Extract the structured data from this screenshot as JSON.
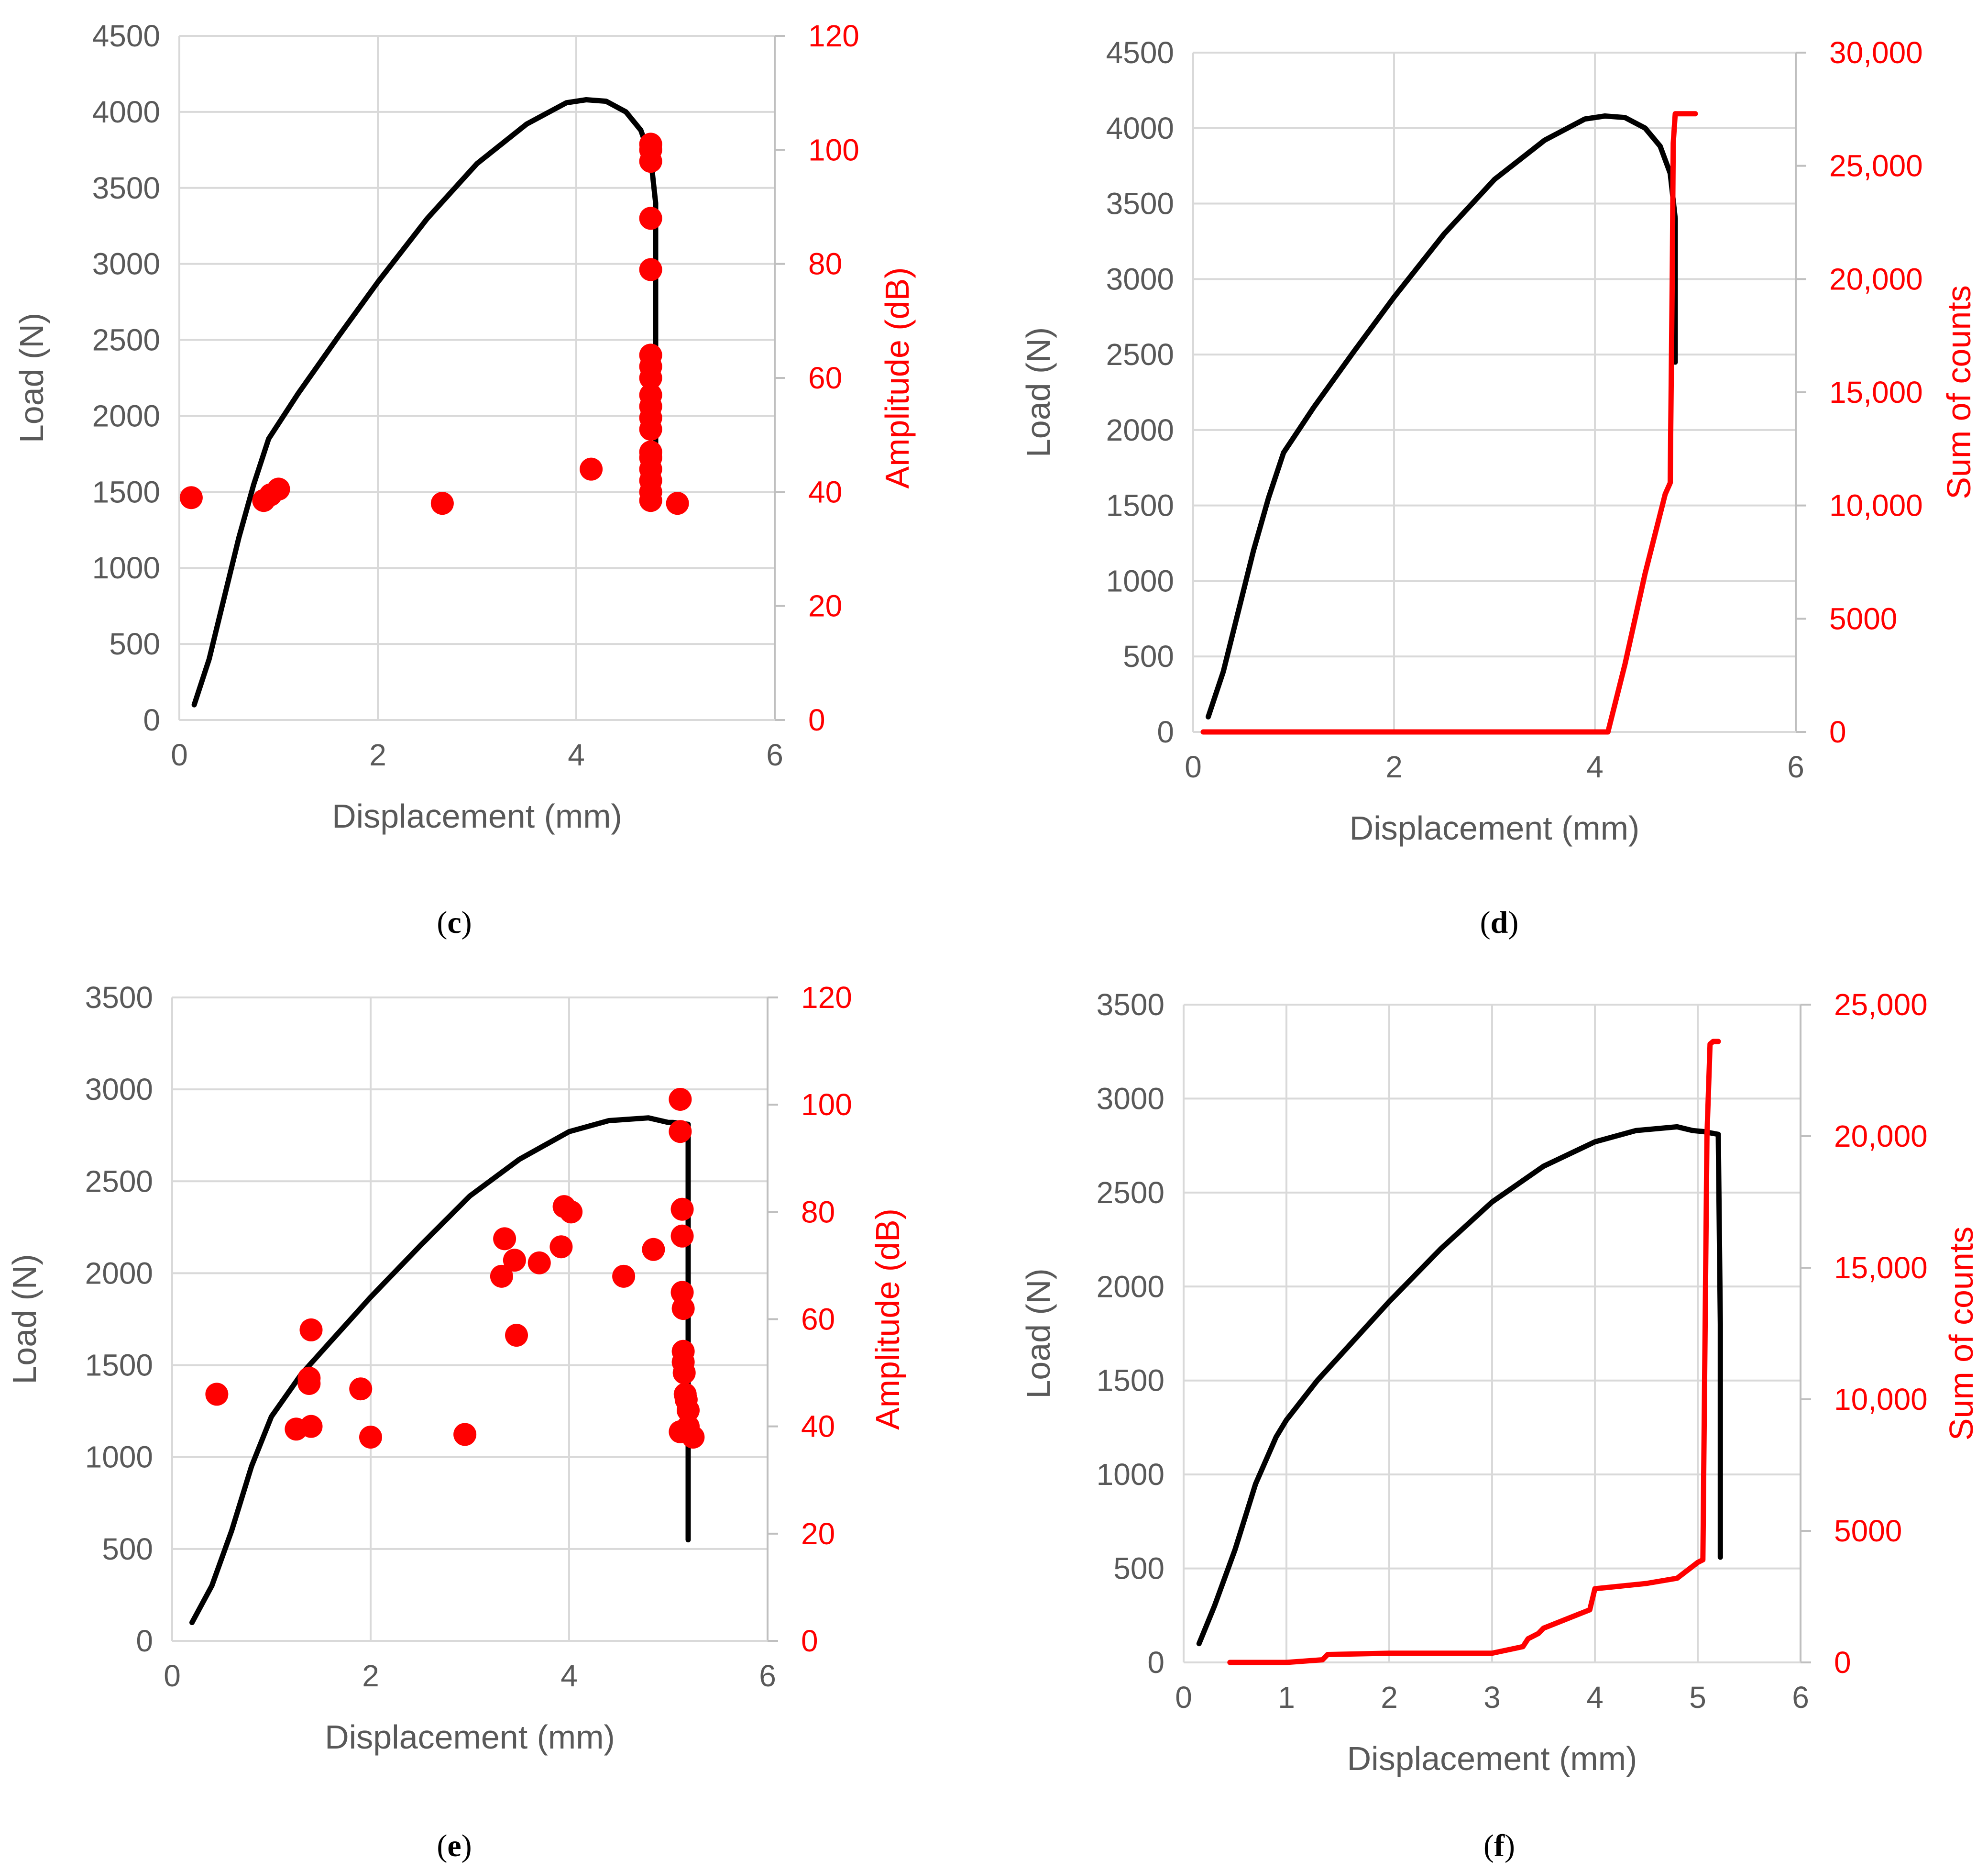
{
  "colors": {
    "load": "#000000",
    "acoustic": "#ff0000",
    "tick": "#595959",
    "grid": "#d9d9d9"
  },
  "chart_data": [
    {
      "panel": "(c)",
      "panel_letter": "c",
      "type": "line+scatter",
      "xlabel": "Displacement (mm)",
      "ylabel": "Load (N)",
      "y2label": "Amplitude (dB)",
      "xlim": [
        0,
        6
      ],
      "xticks": [
        "0",
        "2",
        "4",
        "6"
      ],
      "ylim": [
        0,
        4500
      ],
      "yticks": [
        "0",
        "500",
        "1000",
        "1500",
        "2000",
        "2500",
        "3000",
        "3500",
        "4000",
        "4500"
      ],
      "y2lim": [
        0,
        120
      ],
      "y2ticks": [
        "0",
        "20",
        "40",
        "60",
        "80",
        "100",
        "120"
      ],
      "series": [
        {
          "name": "Load",
          "axis": "left",
          "kind": "line",
          "x": [
            0.15,
            0.3,
            0.45,
            0.6,
            0.75,
            0.9,
            1.2,
            1.6,
            2.0,
            2.5,
            3.0,
            3.5,
            3.9,
            4.1,
            4.3,
            4.5,
            4.65,
            4.75,
            4.8,
            4.8
          ],
          "y": [
            100,
            400,
            800,
            1200,
            1550,
            1850,
            2150,
            2520,
            2880,
            3300,
            3660,
            3920,
            4060,
            4080,
            4070,
            4000,
            3880,
            3700,
            3400,
            1450
          ]
        },
        {
          "name": "Amplitude",
          "axis": "right",
          "kind": "scatter",
          "x": [
            0.12,
            0.85,
            0.92,
            1.0,
            2.65,
            4.15,
            4.75,
            4.75,
            4.75,
            4.75,
            4.75,
            4.75,
            4.75,
            4.75,
            4.75,
            4.75,
            4.75,
            4.75,
            4.75,
            4.75,
            4.75,
            4.75,
            4.75,
            4.75,
            5.02
          ],
          "y": [
            39,
            38.5,
            39.5,
            40.5,
            38,
            44,
            101,
            100,
            98,
            88,
            79,
            64,
            62,
            60,
            57,
            55,
            53,
            51,
            47,
            46,
            44,
            42,
            40,
            38.5,
            38
          ]
        }
      ]
    },
    {
      "panel": "(d)",
      "panel_letter": "d",
      "type": "line",
      "xlabel": "Displacement (mm)",
      "ylabel": "Load (N)",
      "y2label": "Sum of counts",
      "xlim": [
        0,
        6
      ],
      "xticks": [
        "0",
        "2",
        "4",
        "6"
      ],
      "ylim": [
        0,
        4500
      ],
      "yticks": [
        "0",
        "500",
        "1000",
        "1500",
        "2000",
        "2500",
        "3000",
        "3500",
        "4000",
        "4500"
      ],
      "y2lim": [
        0,
        30000
      ],
      "y2ticks": [
        "0",
        "5000",
        "10,000",
        "15,000",
        "20,000",
        "25,000",
        "30,000"
      ],
      "series": [
        {
          "name": "Load",
          "axis": "left",
          "kind": "line",
          "x": [
            0.15,
            0.3,
            0.45,
            0.6,
            0.75,
            0.9,
            1.2,
            1.6,
            2.0,
            2.5,
            3.0,
            3.5,
            3.9,
            4.1,
            4.3,
            4.5,
            4.65,
            4.75,
            4.8,
            4.8
          ],
          "y": [
            100,
            400,
            800,
            1200,
            1550,
            1850,
            2150,
            2520,
            2880,
            3300,
            3660,
            3920,
            4060,
            4080,
            4070,
            4000,
            3880,
            3700,
            3400,
            2450
          ]
        },
        {
          "name": "Sum of counts",
          "axis": "right",
          "kind": "line",
          "x": [
            0.1,
            3.5,
            4.13,
            4.3,
            4.5,
            4.7,
            4.75,
            4.77,
            4.78,
            4.8,
            5.0
          ],
          "y": [
            0,
            0,
            0,
            3000,
            7000,
            10500,
            11000,
            20000,
            26000,
            27300,
            27300
          ]
        }
      ]
    },
    {
      "panel": "(e)",
      "panel_letter": "e",
      "type": "line+scatter",
      "xlabel": "Displacement (mm)",
      "ylabel": "Load (N)",
      "y2label": "Amplitude (dB)",
      "xlim": [
        0,
        6
      ],
      "xticks": [
        "0",
        "2",
        "4",
        "6"
      ],
      "ylim": [
        0,
        3500
      ],
      "yticks": [
        "0",
        "500",
        "1000",
        "1500",
        "2000",
        "2500",
        "3000",
        "3500"
      ],
      "y2lim": [
        0,
        120
      ],
      "y2ticks": [
        "0",
        "20",
        "40",
        "60",
        "80",
        "100",
        "120"
      ],
      "series": [
        {
          "name": "Load",
          "axis": "left",
          "kind": "line",
          "x": [
            0.2,
            0.4,
            0.6,
            0.8,
            1.0,
            1.3,
            1.6,
            2.0,
            2.5,
            3.0,
            3.5,
            4.0,
            4.4,
            4.8,
            5.0,
            5.05,
            5.2,
            5.2,
            5.2
          ],
          "y": [
            100,
            300,
            600,
            950,
            1220,
            1450,
            1630,
            1870,
            2150,
            2420,
            2620,
            2770,
            2830,
            2845,
            2820,
            2820,
            2810,
            1500,
            550
          ]
        },
        {
          "name": "Amplitude",
          "axis": "right",
          "kind": "scatter",
          "x": [
            0.45,
            1.25,
            1.4,
            1.38,
            1.38,
            1.4,
            1.9,
            2.0,
            2.95,
            3.32,
            3.35,
            3.45,
            3.47,
            3.7,
            3.92,
            3.95,
            4.02,
            4.55,
            4.85,
            5.12,
            5.12,
            5.14,
            5.14,
            5.14,
            5.15,
            5.15,
            5.15,
            5.16,
            5.17,
            5.18,
            5.2,
            5.2,
            5.25,
            5.12
          ],
          "y": [
            46,
            39.5,
            40,
            48,
            49,
            58,
            47,
            38,
            38.5,
            68,
            75,
            71,
            57,
            70.5,
            73.5,
            81,
            80,
            68,
            73,
            101,
            95,
            80.5,
            75.5,
            65,
            62,
            54,
            52,
            50,
            46,
            45,
            43,
            40,
            38,
            39
          ]
        }
      ]
    },
    {
      "panel": "(f)",
      "panel_letter": "f",
      "type": "line",
      "xlabel": "Displacement (mm)",
      "ylabel": "Load (N)",
      "y2label": "Sum of counts",
      "xlim": [
        0,
        6
      ],
      "xticks": [
        "0",
        "1",
        "2",
        "3",
        "4",
        "5",
        "6"
      ],
      "ylim": [
        0,
        3500
      ],
      "yticks": [
        "0",
        "500",
        "1000",
        "1500",
        "2000",
        "2500",
        "3000",
        "3500"
      ],
      "y2lim": [
        0,
        25000
      ],
      "y2ticks": [
        "0",
        "5000",
        "10,000",
        "15,000",
        "20,000",
        "25,000"
      ],
      "series": [
        {
          "name": "Load",
          "axis": "left",
          "kind": "line",
          "x": [
            0.15,
            0.3,
            0.5,
            0.7,
            0.9,
            1.0,
            1.3,
            1.6,
            2.0,
            2.5,
            3.0,
            3.5,
            4.0,
            4.4,
            4.8,
            4.95,
            5.05,
            5.2,
            5.22,
            5.22
          ],
          "y": [
            100,
            300,
            600,
            950,
            1200,
            1290,
            1500,
            1680,
            1920,
            2200,
            2450,
            2640,
            2770,
            2830,
            2850,
            2830,
            2825,
            2810,
            1800,
            560
          ]
        },
        {
          "name": "Sum of counts",
          "axis": "right",
          "kind": "line",
          "x": [
            0.45,
            1.0,
            1.35,
            1.4,
            2.0,
            3.0,
            3.3,
            3.35,
            3.45,
            3.5,
            3.95,
            4.0,
            4.5,
            4.8,
            5.0,
            5.05,
            5.07,
            5.09,
            5.12,
            5.15,
            5.2
          ],
          "y": [
            0,
            0,
            100,
            300,
            350,
            350,
            600,
            900,
            1100,
            1300,
            2000,
            2800,
            3000,
            3200,
            3800,
            3900,
            12000,
            20000,
            23500,
            23600,
            23600
          ]
        }
      ]
    }
  ]
}
